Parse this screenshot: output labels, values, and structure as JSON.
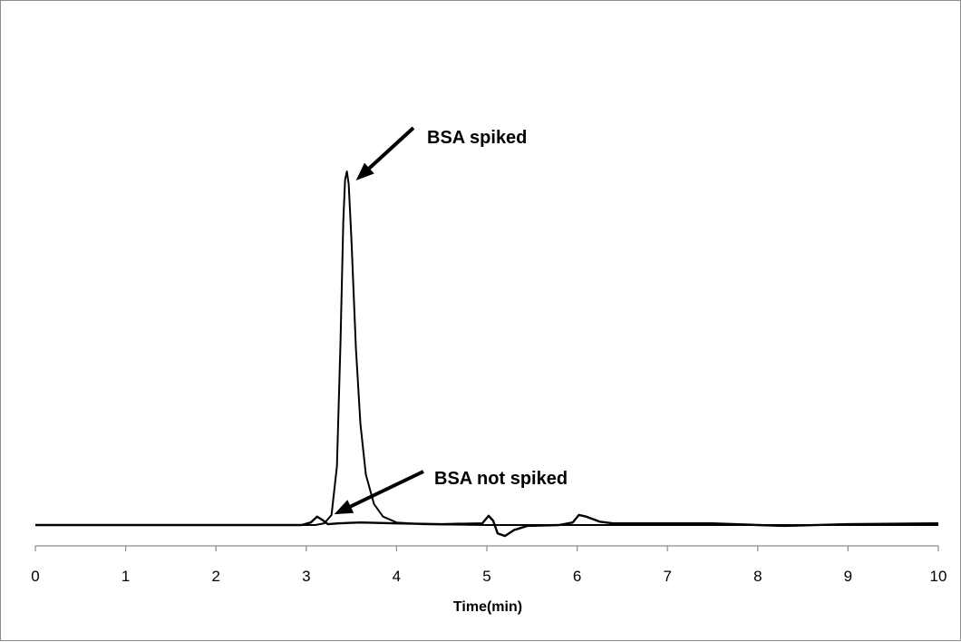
{
  "chart_data": {
    "type": "line",
    "title": "",
    "xlabel": "Time(min)",
    "ylabel": "",
    "xlim": [
      0,
      10
    ],
    "ylim": [
      -0.2,
      5.2
    ],
    "x_ticks": [
      "0",
      "1",
      "2",
      "3",
      "4",
      "5",
      "6",
      "7",
      "8",
      "9",
      "10"
    ],
    "grid": false,
    "legend": "none",
    "series": [
      {
        "color": "#000000",
        "points": [
          [
            0,
            0.0
          ],
          [
            1,
            0.0
          ],
          [
            2,
            0.0
          ],
          [
            3.0,
            0.0
          ],
          [
            3.1,
            0.0
          ],
          [
            3.2,
            0.02
          ],
          [
            3.28,
            0.12
          ],
          [
            3.34,
            0.7
          ],
          [
            3.38,
            2.2
          ],
          [
            3.41,
            3.6
          ],
          [
            3.43,
            4.1
          ],
          [
            3.45,
            4.2
          ],
          [
            3.47,
            4.05
          ],
          [
            3.5,
            3.4
          ],
          [
            3.55,
            2.1
          ],
          [
            3.6,
            1.2
          ],
          [
            3.66,
            0.6
          ],
          [
            3.75,
            0.25
          ],
          [
            3.85,
            0.1
          ],
          [
            4.0,
            0.03
          ],
          [
            4.3,
            0.01
          ],
          [
            5,
            0.0
          ],
          [
            6,
            0.0
          ],
          [
            7,
            0.0
          ],
          [
            8,
            0.0
          ],
          [
            9,
            0.0
          ],
          [
            10,
            0.0
          ]
        ]
      },
      {
        "color": "#000000",
        "points": [
          [
            0,
            0.0
          ],
          [
            1,
            0.0
          ],
          [
            2,
            0.0
          ],
          [
            2.95,
            0.0
          ],
          [
            3.05,
            0.03
          ],
          [
            3.12,
            0.1
          ],
          [
            3.18,
            0.06
          ],
          [
            3.24,
            0.01
          ],
          [
            3.35,
            0.02
          ],
          [
            3.6,
            0.03
          ],
          [
            4.0,
            0.02
          ],
          [
            4.5,
            0.01
          ],
          [
            4.95,
            0.02
          ],
          [
            5.02,
            0.11
          ],
          [
            5.07,
            0.05
          ],
          [
            5.12,
            -0.1
          ],
          [
            5.2,
            -0.13
          ],
          [
            5.3,
            -0.06
          ],
          [
            5.45,
            -0.01
          ],
          [
            5.8,
            0.0
          ],
          [
            5.95,
            0.03
          ],
          [
            6.02,
            0.12
          ],
          [
            6.1,
            0.1
          ],
          [
            6.25,
            0.04
          ],
          [
            6.4,
            0.02
          ],
          [
            7.0,
            0.02
          ],
          [
            7.5,
            0.02
          ],
          [
            8.0,
            0.0
          ],
          [
            8.3,
            -0.01
          ],
          [
            9.0,
            0.01
          ],
          [
            10,
            0.02
          ]
        ]
      }
    ],
    "annotations": [
      {
        "text": "BSA spiked",
        "arrow_to": [
          3.47,
          4.2
        ]
      },
      {
        "text": "BSA not spiked",
        "arrow_to": [
          3.27,
          0.02
        ]
      }
    ]
  }
}
